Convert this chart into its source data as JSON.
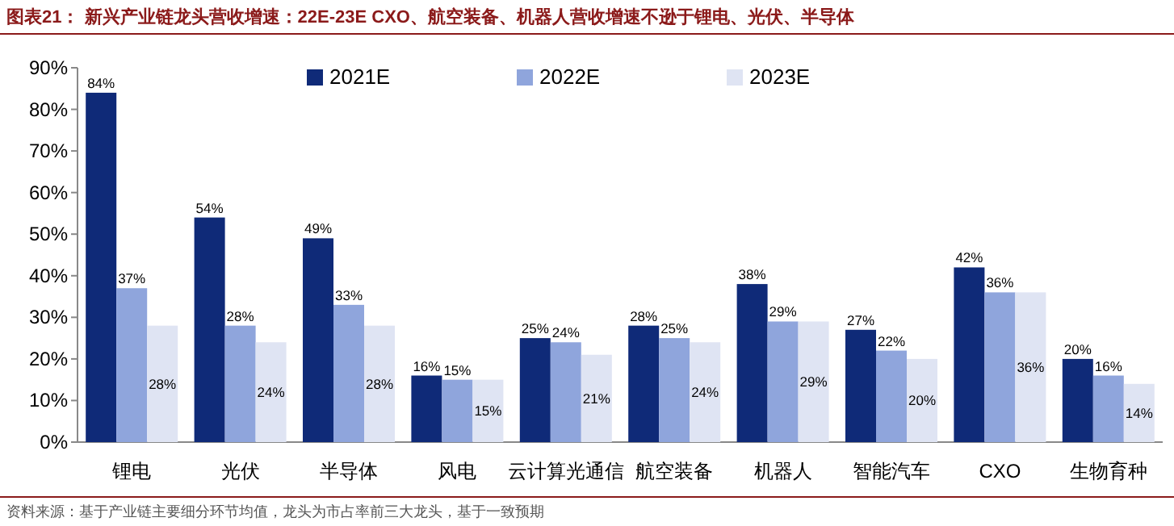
{
  "chart_data": {
    "type": "bar",
    "title": "图表21： 新兴产业链龙头营收增速：22E-23E CXO、航空装备、机器人营收增速不逊于锂电、光伏、半导体",
    "categories": [
      "锂电",
      "光伏",
      "半导体",
      "风电",
      "云计算光通信",
      "航空装备",
      "机器人",
      "智能汽车",
      "CXO",
      "生物育种"
    ],
    "series": [
      {
        "name": "2021E",
        "color": "#0f2a78",
        "values": [
          84,
          54,
          49,
          16,
          25,
          28,
          38,
          27,
          42,
          20
        ],
        "value_labels": [
          "84%",
          "54%",
          "49%",
          "16%",
          "25%",
          "28%",
          "38%",
          "27%",
          "42%",
          "20%"
        ]
      },
      {
        "name": "2022E",
        "color": "#8fa5dc",
        "values": [
          37,
          28,
          33,
          15,
          24,
          25,
          29,
          22,
          36,
          16
        ],
        "value_labels": [
          "37%",
          "28%",
          "33%",
          "15%",
          "24%",
          "25%",
          "29%",
          "22%",
          "36%",
          "16%"
        ]
      },
      {
        "name": "2023E",
        "color": "#dfe4f3",
        "values": [
          28,
          24,
          28,
          15,
          21,
          24,
          29,
          20,
          36,
          14
        ],
        "value_labels": [
          "28%",
          "24%",
          "28%",
          "15%",
          "21%",
          "24%",
          "29%",
          "20%",
          "36%",
          "14%"
        ]
      }
    ],
    "ylim": [
      0,
      90
    ],
    "yticks": [
      {
        "value": 0,
        "label": "0%"
      },
      {
        "value": 10,
        "label": "10%"
      },
      {
        "value": 20,
        "label": "20%"
      },
      {
        "value": 30,
        "label": "30%"
      },
      {
        "value": 40,
        "label": "40%"
      },
      {
        "value": 50,
        "label": "50%"
      },
      {
        "value": 60,
        "label": "60%"
      },
      {
        "value": 70,
        "label": "70%"
      },
      {
        "value": 80,
        "label": "80%"
      },
      {
        "value": 90,
        "label": "90%"
      }
    ],
    "legend": "top",
    "annotations": [
      "资料来源：基于产业链主要细分环节均值，龙头为市占率前三大龙头，基于一致预期"
    ]
  }
}
